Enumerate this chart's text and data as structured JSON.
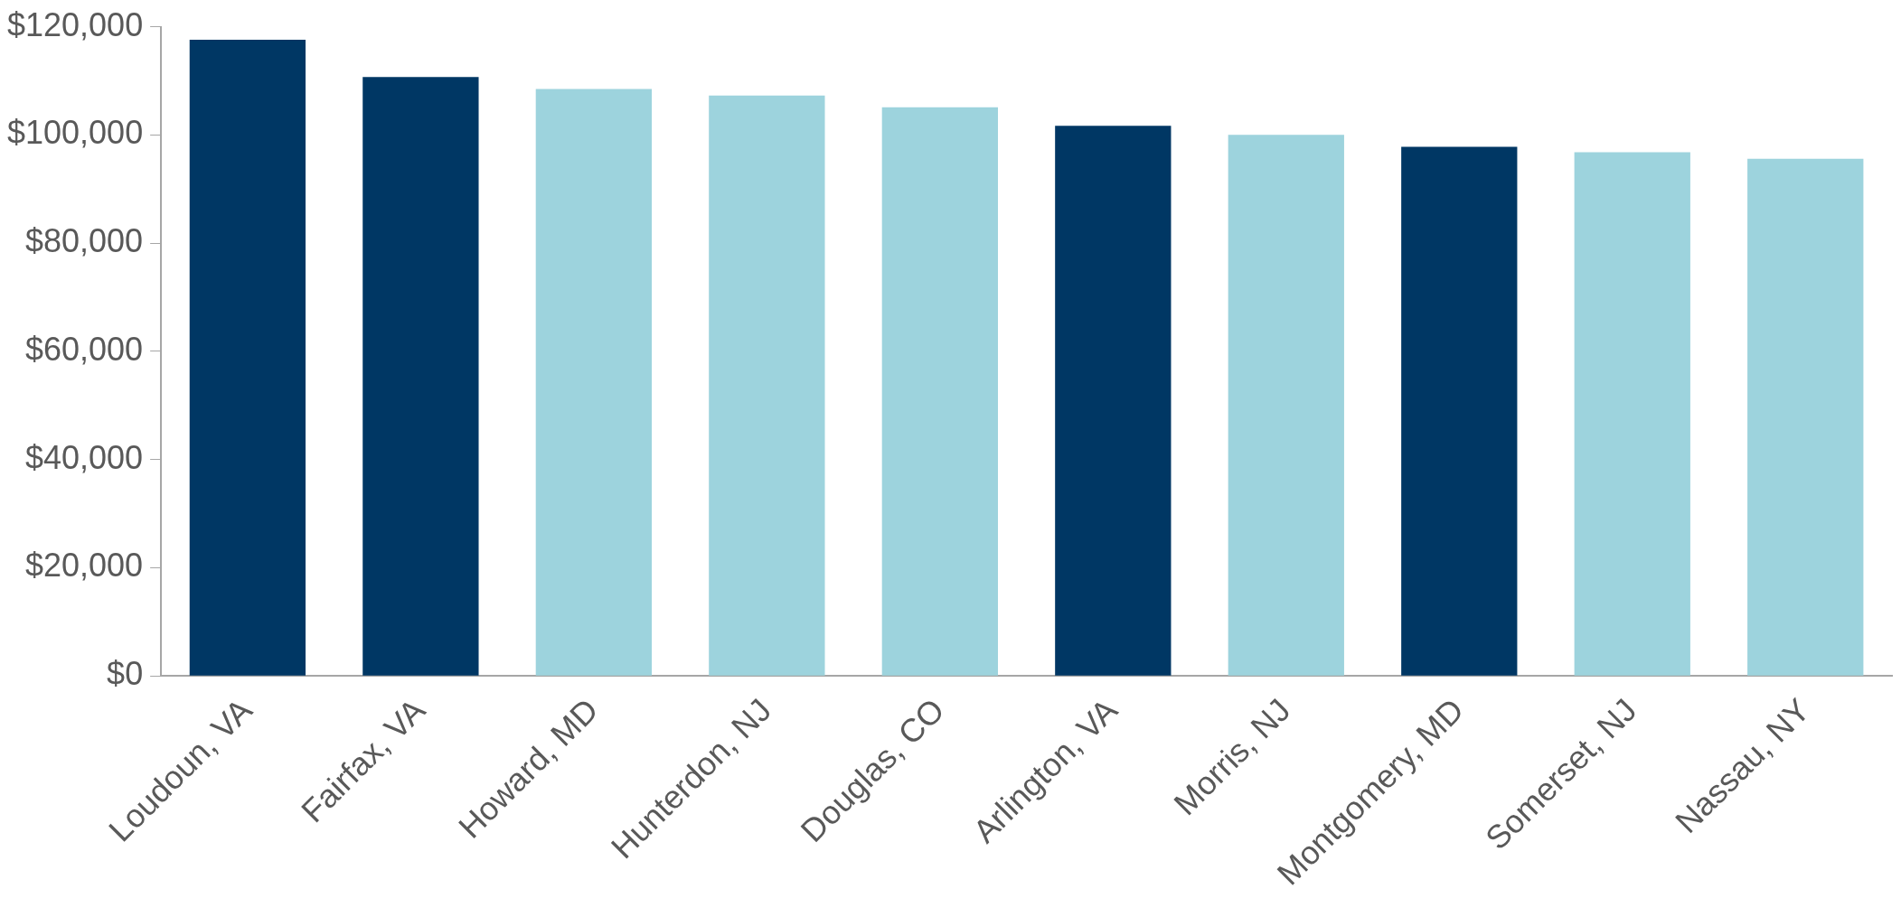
{
  "chart_data": {
    "type": "bar",
    "categories": [
      "Loudoun, VA",
      "Fairfax, VA",
      "Howard, MD",
      "Hunterdon, NJ",
      "Douglas, CO",
      "Arlington, VA",
      "Morris, NJ",
      "Montgomery, MD",
      "Somerset, NJ",
      "Nassau, NY"
    ],
    "values": [
      117600,
      110700,
      108500,
      107300,
      105100,
      101700,
      100000,
      97800,
      96800,
      95600
    ],
    "colors": [
      "#003764",
      "#003764",
      "#9dd3dd",
      "#9dd3dd",
      "#9dd3dd",
      "#003764",
      "#9dd3dd",
      "#003764",
      "#9dd3dd",
      "#9dd3dd"
    ],
    "ylim": [
      0,
      120000
    ],
    "yticks": [
      {
        "value": 0,
        "label": "$0"
      },
      {
        "value": 20000,
        "label": "$20,000"
      },
      {
        "value": 40000,
        "label": "$40,000"
      },
      {
        "value": 60000,
        "label": "$60,000"
      },
      {
        "value": 80000,
        "label": "$80,000"
      },
      {
        "value": 100000,
        "label": "$100,000"
      },
      {
        "value": 120000,
        "label": "$120,000"
      }
    ],
    "grid": false,
    "legend": false
  }
}
